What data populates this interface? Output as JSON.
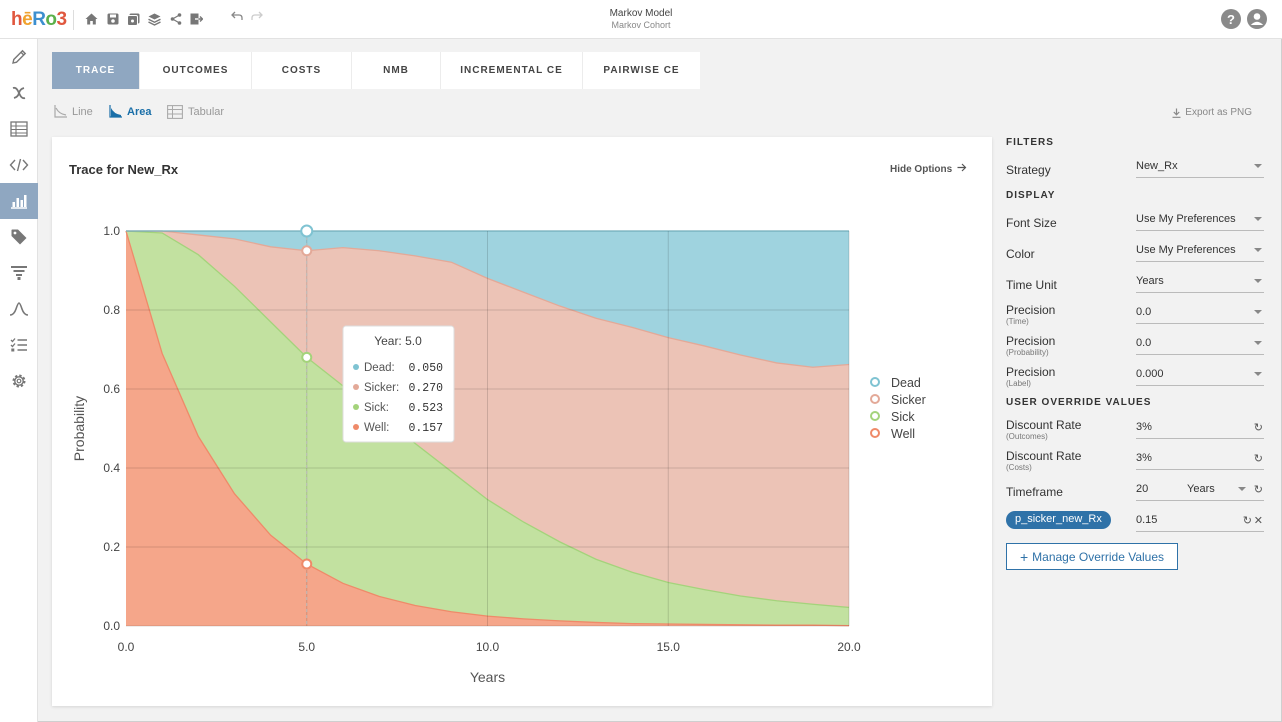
{
  "app": {
    "logo": {
      "h": "h",
      "e": "ē",
      "R": "R",
      "o": "o",
      "three": "3"
    },
    "title": "Markov Model",
    "subtitle": "Markov Cohort",
    "help_glyph": "?"
  },
  "toolbar_icons": [
    "home-icon",
    "save-icon",
    "save-all-icon",
    "layers-icon",
    "share-icon",
    "export-icon"
  ],
  "sidebar_icons": [
    "pencil-icon",
    "variable-icon",
    "table-icon",
    "code-icon",
    "bar-chart-icon",
    "tag-icon",
    "filter-icon",
    "curve-icon",
    "checklist-icon",
    "gear-icon"
  ],
  "tabs": [
    {
      "label": "TRACE",
      "active": true
    },
    {
      "label": "OUTCOMES"
    },
    {
      "label": "COSTS"
    },
    {
      "label": "NMB"
    },
    {
      "label": "INCREMENTAL CE"
    },
    {
      "label": "PAIRWISE CE"
    }
  ],
  "chart_types": {
    "line": "Line",
    "area": "Area",
    "tabular": "Tabular"
  },
  "export_label": "Export as PNG",
  "panel": {
    "title": "Trace for New_Rx",
    "hide_options": "Hide Options"
  },
  "colors": {
    "dead": "#9fd3df",
    "sicker": "#ecc3b6",
    "sick": "#c2e1a0",
    "well": "#f5a68a",
    "accent": "#2f72a8"
  },
  "chart_data": {
    "type": "area",
    "stacked": true,
    "xlabel": "Years",
    "ylabel": "Probability",
    "xlim": [
      0,
      20
    ],
    "ylim": [
      0,
      1
    ],
    "xticks": [
      "0.0",
      "5.0",
      "10.0",
      "15.0",
      "20.0"
    ],
    "yticks": [
      "0.0",
      "0.2",
      "0.4",
      "0.6",
      "0.8",
      "1.0"
    ],
    "x": [
      0,
      1,
      2,
      3,
      4,
      5,
      6,
      7,
      8,
      9,
      10,
      11,
      12,
      13,
      14,
      15,
      16,
      17,
      18,
      19,
      20
    ],
    "series": [
      {
        "name": "Well",
        "values": [
          1.0,
          0.69,
          0.48,
          0.335,
          0.23,
          0.157,
          0.108,
          0.075,
          0.052,
          0.036,
          0.025,
          0.018,
          0.013,
          0.009,
          0.006,
          0.005,
          0.004,
          0.003,
          0.002,
          0.002,
          0.001
        ]
      },
      {
        "name": "Sick",
        "values": [
          0.0,
          0.305,
          0.46,
          0.525,
          0.54,
          0.523,
          0.5,
          0.46,
          0.41,
          0.355,
          0.295,
          0.245,
          0.2,
          0.16,
          0.13,
          0.105,
          0.088,
          0.073,
          0.062,
          0.053,
          0.046
        ]
      },
      {
        "name": "Sicker",
        "values": [
          0.0,
          0.005,
          0.05,
          0.12,
          0.19,
          0.27,
          0.35,
          0.415,
          0.475,
          0.53,
          0.56,
          0.582,
          0.597,
          0.61,
          0.62,
          0.62,
          0.617,
          0.61,
          0.602,
          0.6,
          0.615
        ]
      },
      {
        "name": "Dead",
        "values": [
          0.0,
          0.0,
          0.01,
          0.02,
          0.04,
          0.05,
          0.042,
          0.05,
          0.063,
          0.079,
          0.12,
          0.155,
          0.19,
          0.221,
          0.244,
          0.27,
          0.291,
          0.314,
          0.334,
          0.345,
          0.338
        ]
      }
    ],
    "legend": [
      "Dead",
      "Sicker",
      "Sick",
      "Well"
    ],
    "legend_position": "right",
    "tooltip": {
      "title": "Year: 5.0",
      "rows": [
        {
          "name": "Dead:",
          "value": "0.050"
        },
        {
          "name": "Sicker:",
          "value": "0.270"
        },
        {
          "name": "Sick:",
          "value": "0.523"
        },
        {
          "name": "Well:",
          "value": "0.157"
        }
      ],
      "x_value": 5
    }
  },
  "filters": {
    "heading": "FILTERS",
    "strategy_label": "Strategy",
    "strategy_value": "New_Rx"
  },
  "display": {
    "heading": "DISPLAY",
    "font_size_label": "Font Size",
    "font_size_value": "Use My Preferences",
    "color_label": "Color",
    "color_value": "Use My Preferences",
    "time_unit_label": "Time Unit",
    "time_unit_value": "Years",
    "precision_label": "Precision",
    "precision_time_sub": "(Time)",
    "precision_time_value": "0.0",
    "precision_prob_sub": "(Probability)",
    "precision_prob_value": "0.0",
    "precision_label_sub": "(Label)",
    "precision_label_value": "0.000"
  },
  "overrides": {
    "heading": "USER OVERRIDE VALUES",
    "discount_label": "Discount Rate",
    "discount_outcomes_sub": "(Outcomes)",
    "discount_outcomes_value": "3%",
    "discount_costs_sub": "(Costs)",
    "discount_costs_value": "3%",
    "timeframe_label": "Timeframe",
    "timeframe_value": "20",
    "timeframe_unit": "Years",
    "param_name": "p_sicker_new_Rx",
    "param_value": "0.15",
    "manage_label": "Manage Override Values"
  }
}
